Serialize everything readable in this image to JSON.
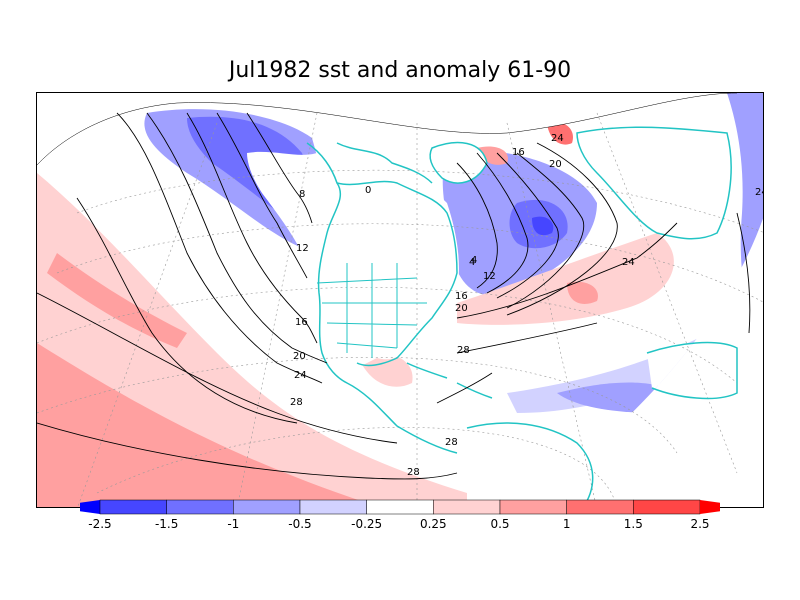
{
  "title": "Jul1982 sst and anomaly 61-90",
  "colors": {
    "land_outline": "#22c4c4",
    "contour": "#000000",
    "grid": "#999999"
  },
  "contour_labels": [
    "0",
    "4",
    "8",
    "12",
    "16",
    "20",
    "24",
    "28"
  ],
  "colorbar": {
    "tick_labels": [
      "-2.5",
      "-1.5",
      "-1",
      "-0.5",
      "-0.25",
      "0.25",
      "0.5",
      "1",
      "1.5",
      "2.5"
    ],
    "colors": [
      "#0000ff",
      "#4646ff",
      "#7070ff",
      "#a0a0ff",
      "#d2d2ff",
      "#ffffff",
      "#ffd2d2",
      "#ffa0a0",
      "#ff7070",
      "#ff4646",
      "#ff0000"
    ]
  }
}
